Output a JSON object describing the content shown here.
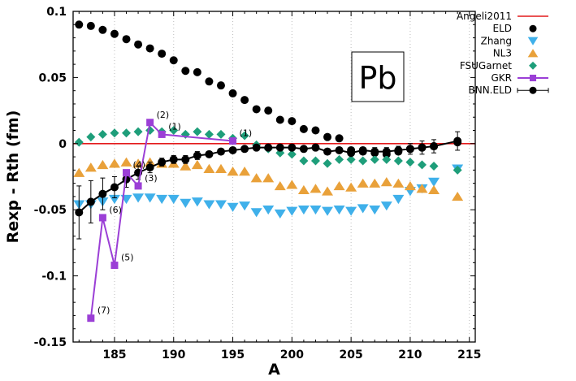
{
  "chart_data": {
    "type": "scatter",
    "title": "",
    "xlabel": "A",
    "ylabel": "Rexp - Rth (fm)",
    "xlim": [
      181.5,
      215.5
    ],
    "ylim": [
      -0.15,
      0.1
    ],
    "xticks": [
      185,
      190,
      195,
      200,
      205,
      210,
      215
    ],
    "xtick_labels": [
      "185",
      "190",
      "195",
      "200",
      "205",
      "210",
      "215"
    ],
    "yticks": [
      -0.15,
      -0.1,
      -0.05,
      0,
      0.05,
      0.1
    ],
    "ytick_labels": [
      "-0.15",
      "-0.1",
      "-0.05",
      "0",
      "0.05",
      "0.1"
    ],
    "grid": "vertical dotted",
    "legend_position": "right",
    "panel_label": "Pb",
    "series": [
      {
        "name": "Angeli2011",
        "style": "line",
        "color": "#e41a1c",
        "x": [
          181.5,
          215.5
        ],
        "y": [
          0,
          0
        ]
      },
      {
        "name": "ELD",
        "style": "circle",
        "color": "#000000",
        "x": [
          182,
          183,
          184,
          185,
          186,
          187,
          188,
          189,
          190,
          191,
          192,
          193,
          194,
          195,
          196,
          197,
          198,
          199,
          200,
          201,
          202,
          203,
          204,
          205,
          206,
          207,
          208,
          209,
          210,
          211,
          212,
          214
        ],
        "y": [
          0.09,
          0.089,
          0.086,
          0.083,
          0.079,
          0.075,
          0.072,
          0.068,
          0.063,
          0.055,
          0.054,
          0.047,
          0.044,
          0.038,
          0.033,
          0.026,
          0.025,
          0.018,
          0.017,
          0.011,
          0.01,
          0.005,
          0.004,
          -0.005,
          -0.006,
          -0.007,
          -0.008,
          -0.006,
          -0.004,
          -0.003,
          -0.002,
          0.001
        ]
      },
      {
        "name": "Zhang",
        "style": "triangle-down",
        "color": "#3fb0ea",
        "x": [
          182,
          183,
          184,
          185,
          186,
          187,
          188,
          189,
          190,
          191,
          192,
          193,
          194,
          195,
          196,
          197,
          198,
          199,
          200,
          201,
          202,
          203,
          204,
          205,
          206,
          207,
          208,
          209,
          210,
          211,
          212,
          214
        ],
        "y": [
          -0.046,
          -0.046,
          -0.044,
          -0.042,
          -0.042,
          -0.041,
          -0.041,
          -0.042,
          -0.042,
          -0.045,
          -0.044,
          -0.046,
          -0.046,
          -0.048,
          -0.047,
          -0.052,
          -0.05,
          -0.053,
          -0.051,
          -0.05,
          -0.05,
          -0.051,
          -0.05,
          -0.051,
          -0.049,
          -0.05,
          -0.047,
          -0.042,
          -0.036,
          -0.034,
          -0.029,
          -0.019
        ]
      },
      {
        "name": "NL3",
        "style": "triangle-up",
        "color": "#e9a13a",
        "x": [
          182,
          183,
          184,
          185,
          186,
          187,
          188,
          189,
          190,
          191,
          192,
          193,
          194,
          195,
          196,
          197,
          198,
          199,
          200,
          201,
          202,
          203,
          204,
          205,
          206,
          207,
          208,
          209,
          210,
          211,
          212,
          214
        ],
        "y": [
          -0.022,
          -0.018,
          -0.016,
          -0.015,
          -0.014,
          -0.015,
          -0.014,
          -0.015,
          -0.015,
          -0.017,
          -0.016,
          -0.019,
          -0.019,
          -0.021,
          -0.021,
          -0.026,
          -0.026,
          -0.032,
          -0.031,
          -0.035,
          -0.034,
          -0.036,
          -0.032,
          -0.033,
          -0.03,
          -0.03,
          -0.029,
          -0.03,
          -0.032,
          -0.034,
          -0.035,
          -0.04
        ]
      },
      {
        "name": "FSUGarnet",
        "style": "diamond",
        "color": "#1e9e7a",
        "x": [
          182,
          183,
          184,
          185,
          186,
          187,
          188,
          189,
          190,
          191,
          192,
          193,
          194,
          195,
          196,
          197,
          198,
          199,
          200,
          201,
          202,
          203,
          204,
          205,
          206,
          207,
          208,
          209,
          210,
          211,
          212,
          214
        ],
        "y": [
          0.001,
          0.005,
          0.007,
          0.008,
          0.008,
          0.009,
          0.01,
          0.009,
          0.01,
          0.007,
          0.009,
          0.007,
          0.007,
          0.004,
          0.006,
          -0.001,
          -0.004,
          -0.007,
          -0.008,
          -0.013,
          -0.013,
          -0.015,
          -0.012,
          -0.012,
          -0.013,
          -0.012,
          -0.012,
          -0.013,
          -0.014,
          -0.016,
          -0.017,
          -0.02
        ]
      },
      {
        "name": "GKR",
        "style": "square-line",
        "color": "#9b3fd6",
        "x": [
          183,
          184,
          185,
          186,
          187,
          188,
          189,
          195
        ],
        "y": [
          -0.132,
          -0.056,
          -0.092,
          -0.022,
          -0.032,
          0.016,
          0.007,
          0.002
        ],
        "labels": [
          "(7)",
          "(6)",
          "(5)",
          "(4)",
          "(3)",
          "(2)",
          "(1)",
          "(1)"
        ]
      },
      {
        "name": "BNN.ELD",
        "style": "circle-errorbar",
        "color": "#000000",
        "x": [
          182,
          183,
          184,
          185,
          186,
          187,
          188,
          189,
          190,
          191,
          192,
          193,
          194,
          195,
          196,
          197,
          198,
          199,
          200,
          201,
          202,
          203,
          204,
          205,
          206,
          207,
          208,
          209,
          210,
          211,
          212,
          214
        ],
        "y": [
          -0.052,
          -0.044,
          -0.038,
          -0.033,
          -0.027,
          -0.022,
          -0.018,
          -0.014,
          -0.012,
          -0.012,
          -0.009,
          -0.008,
          -0.006,
          -0.005,
          -0.004,
          -0.003,
          -0.003,
          -0.003,
          -0.003,
          -0.004,
          -0.003,
          -0.006,
          -0.005,
          -0.007,
          -0.005,
          -0.006,
          -0.006,
          -0.005,
          -0.004,
          -0.003,
          -0.002,
          0.002
        ],
        "err": [
          0.02,
          0.016,
          0.012,
          0.008,
          0.006,
          0.005,
          0.004,
          0.003,
          0.003,
          0.003,
          0.003,
          0.002,
          0.002,
          0.002,
          0.002,
          0.002,
          0.002,
          0.002,
          0.002,
          0.002,
          0.002,
          0.002,
          0.002,
          0.002,
          0.002,
          0.003,
          0.003,
          0.003,
          0.004,
          0.005,
          0.005,
          0.007
        ]
      }
    ]
  }
}
